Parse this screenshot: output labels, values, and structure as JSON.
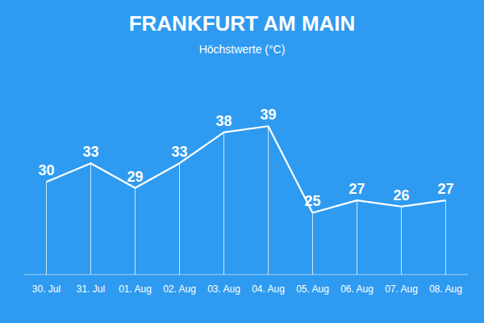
{
  "chart_data": {
    "type": "line",
    "title": "FRANKFURT AM MAIN",
    "subtitle": "Höchstwerte (°C)",
    "categories": [
      "30. Jul",
      "31. Jul",
      "01. Aug",
      "02. Aug",
      "03. Aug",
      "04. Aug",
      "05. Aug",
      "06. Aug",
      "07. Aug",
      "08. Aug"
    ],
    "values": [
      30,
      33,
      29,
      33,
      38,
      39,
      25,
      27,
      26,
      27
    ],
    "color": "#FFFFFF",
    "ylim": [
      15,
      47
    ],
    "grid": false,
    "data_labels": true,
    "tick_labels": "x"
  }
}
